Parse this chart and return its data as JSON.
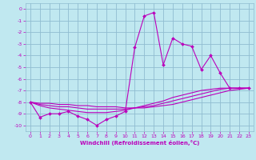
{
  "xlabel": "Windchill (Refroidissement éolien,°C)",
  "ylabel": "",
  "bg_color": "#c0e8f0",
  "grid_color": "#90bcd0",
  "line_color": "#bb00bb",
  "xlim": [
    -0.5,
    23.5
  ],
  "ylim": [
    -10.5,
    0.5
  ],
  "xticks": [
    0,
    1,
    2,
    3,
    4,
    5,
    6,
    7,
    8,
    9,
    10,
    11,
    12,
    13,
    14,
    15,
    16,
    17,
    18,
    19,
    20,
    21,
    22,
    23
  ],
  "yticks": [
    0,
    -1,
    -2,
    -3,
    -4,
    -5,
    -6,
    -7,
    -8,
    -9,
    -10
  ],
  "line1_x": [
    0,
    1,
    2,
    3,
    4,
    5,
    6,
    7,
    8,
    9,
    10,
    11,
    12,
    13,
    14,
    15,
    16,
    17,
    18,
    19,
    20,
    21,
    22,
    23
  ],
  "line1_y": [
    -8.0,
    -9.3,
    -9.0,
    -9.0,
    -8.8,
    -9.2,
    -9.5,
    -10.0,
    -9.5,
    -9.2,
    -8.8,
    -3.3,
    -0.6,
    -0.3,
    -4.8,
    -2.5,
    -3.0,
    -3.2,
    -5.2,
    -4.0,
    -5.5,
    -6.8,
    -6.8,
    -6.8
  ],
  "line2_x": [
    0,
    1,
    2,
    3,
    4,
    5,
    6,
    7,
    8,
    9,
    10,
    11,
    12,
    13,
    14,
    15,
    16,
    17,
    18,
    19,
    20,
    21,
    22,
    23
  ],
  "line2_y": [
    -8.0,
    -8.1,
    -8.1,
    -8.2,
    -8.2,
    -8.3,
    -8.3,
    -8.4,
    -8.4,
    -8.4,
    -8.5,
    -8.5,
    -8.5,
    -8.4,
    -8.3,
    -8.2,
    -8.0,
    -7.8,
    -7.6,
    -7.4,
    -7.2,
    -7.0,
    -6.9,
    -6.8
  ],
  "line3_x": [
    0,
    1,
    2,
    3,
    4,
    5,
    6,
    7,
    8,
    9,
    10,
    11,
    12,
    13,
    14,
    15,
    16,
    17,
    18,
    19,
    20,
    21,
    22,
    23
  ],
  "line3_y": [
    -8.0,
    -8.2,
    -8.3,
    -8.4,
    -8.4,
    -8.5,
    -8.6,
    -8.6,
    -8.6,
    -8.6,
    -8.6,
    -8.5,
    -8.4,
    -8.3,
    -8.1,
    -7.9,
    -7.7,
    -7.5,
    -7.3,
    -7.1,
    -6.9,
    -6.8,
    -6.8,
    -6.8
  ],
  "line4_x": [
    0,
    1,
    2,
    3,
    4,
    5,
    6,
    7,
    8,
    9,
    10,
    11,
    12,
    13,
    14,
    15,
    16,
    17,
    18,
    19,
    20,
    21,
    22,
    23
  ],
  "line4_y": [
    -8.0,
    -8.3,
    -8.5,
    -8.6,
    -8.7,
    -8.8,
    -8.9,
    -8.9,
    -8.9,
    -8.8,
    -8.7,
    -8.5,
    -8.3,
    -8.1,
    -7.9,
    -7.6,
    -7.4,
    -7.2,
    -7.0,
    -6.9,
    -6.8,
    -6.8,
    -6.8,
    -6.8
  ]
}
